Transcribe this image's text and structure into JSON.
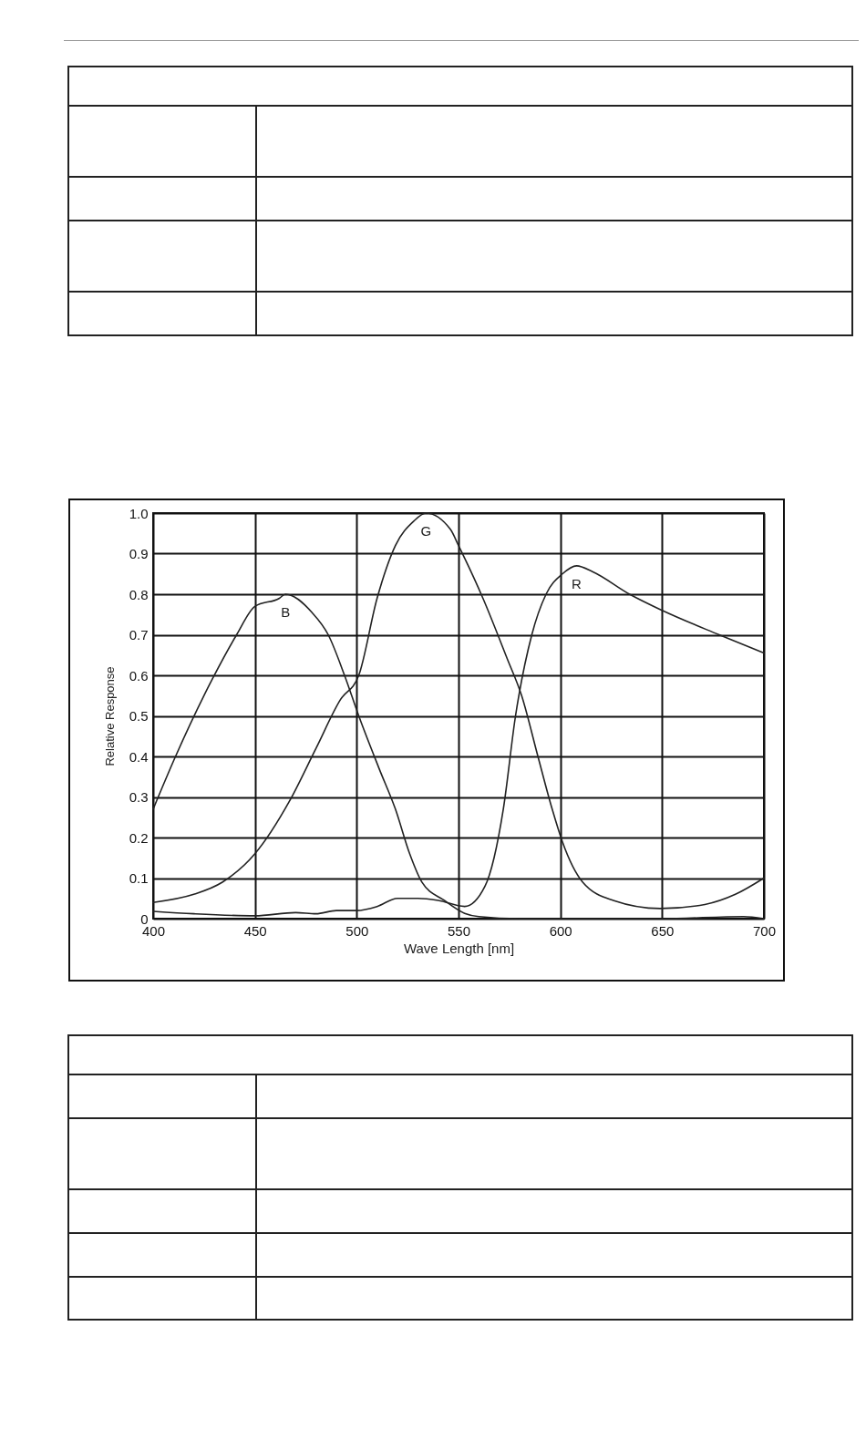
{
  "chart_data": {
    "type": "line",
    "xlabel": "Wave Length [nm]",
    "ylabel": "Relative Response",
    "xlim": [
      400,
      700
    ],
    "xticks": [
      400,
      450,
      500,
      550,
      600,
      650,
      700
    ],
    "ylim": [
      0,
      1
    ],
    "yticks": [
      0,
      0.1,
      0.2,
      0.3,
      0.4,
      0.5,
      0.6,
      0.7,
      0.8,
      0.9,
      {
        "value": 1,
        "label": "1.0"
      }
    ],
    "grid": true,
    "marker": "none",
    "line_style": "solid",
    "series": [
      {
        "name": "B",
        "color": "#222222",
        "x": [
          400,
          411,
          429,
          441,
          450,
          462,
          465,
          478,
          486,
          494,
          501,
          511,
          519,
          526,
          532,
          543,
          553,
          560,
          580,
          620,
          650,
          690,
          700
        ],
        "values": [
          0.27,
          0.4,
          0.59,
          0.7,
          0.77,
          0.79,
          0.8,
          0.755,
          0.7,
          0.6,
          0.5,
          0.37,
          0.27,
          0.16,
          0.09,
          0.045,
          0.013,
          0.005,
          0,
          0,
          0,
          0.005,
          0
        ]
      },
      {
        "name": "G",
        "color": "#222222",
        "x": [
          400,
          420,
          434,
          450,
          467,
          480,
          492,
          501,
          510,
          519,
          528,
          534,
          546,
          550,
          562,
          574,
          581,
          589,
          596,
          601,
          611,
          626,
          649,
          671,
          686,
          700
        ],
        "values": [
          0.04,
          0.06,
          0.09,
          0.16,
          0.29,
          0.42,
          0.54,
          0.6,
          0.79,
          0.92,
          0.98,
          1.0,
          0.96,
          0.92,
          0.79,
          0.64,
          0.55,
          0.4,
          0.27,
          0.19,
          0.09,
          0.045,
          0.025,
          0.035,
          0.06,
          0.1
        ]
      },
      {
        "name": "R",
        "color": "#222222",
        "x": [
          400,
          420,
          450,
          470,
          480,
          490,
          500,
          510,
          520,
          530,
          540,
          553,
          563,
          572,
          578,
          586,
          593,
          601,
          608,
          616,
          634,
          650,
          678,
          700
        ],
        "values": [
          0.018,
          0.012,
          0.007,
          0.015,
          0.012,
          0.02,
          0.02,
          0.03,
          0.05,
          0.05,
          0.045,
          0.03,
          0.08,
          0.27,
          0.5,
          0.7,
          0.8,
          0.85,
          0.87,
          0.855,
          0.8,
          0.76,
          0.7,
          0.655
        ]
      }
    ]
  }
}
